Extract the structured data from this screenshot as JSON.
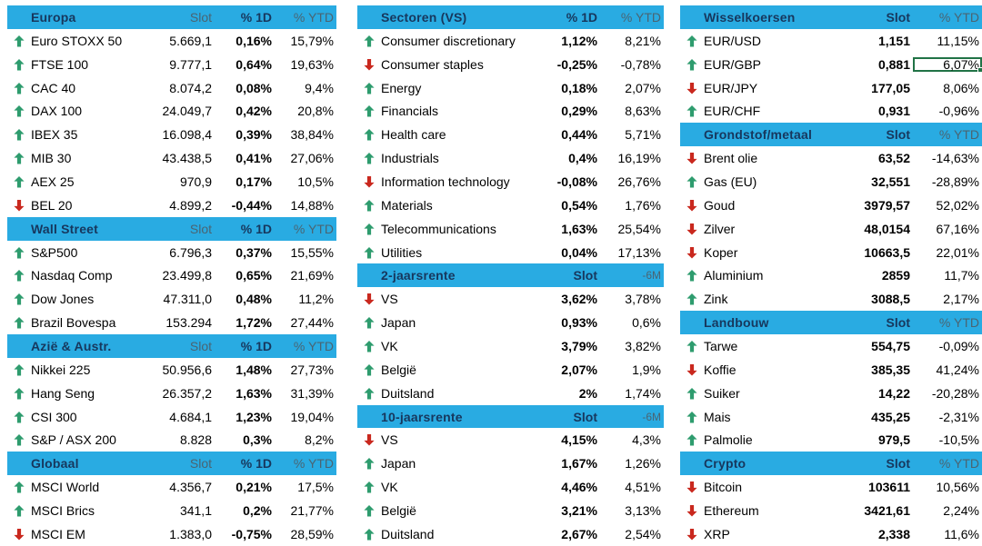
{
  "colors": {
    "band": "#29ABE2",
    "navy": "#17375D",
    "muted": "#4A6472",
    "up_arrow": "#2E9C6E",
    "down_arrow": "#C9281E",
    "selection": "#217346"
  },
  "selection": {
    "table": "right",
    "section": "Wisselkoersen",
    "row": "EUR/GBP",
    "value": "6,07%"
  },
  "tables": [
    {
      "id": "left",
      "grid": "cols3",
      "sections": [
        {
          "title": "Europa",
          "cols": [
            {
              "label": "Slot",
              "bold": false
            },
            {
              "label": "% 1D",
              "bold": true
            },
            {
              "label": "% YTD",
              "bold": false
            }
          ],
          "rows": [
            {
              "dir": "up",
              "name": "Euro STOXX 50",
              "values": [
                "5.669,1",
                "0,16%",
                "15,79%"
              ]
            },
            {
              "dir": "up",
              "name": "FTSE 100",
              "values": [
                "9.777,1",
                "0,64%",
                "19,63%"
              ]
            },
            {
              "dir": "up",
              "name": "CAC 40",
              "values": [
                "8.074,2",
                "0,08%",
                "9,4%"
              ]
            },
            {
              "dir": "up",
              "name": "DAX 100",
              "values": [
                "24.049,7",
                "0,42%",
                "20,8%"
              ]
            },
            {
              "dir": "up",
              "name": "IBEX 35",
              "values": [
                "16.098,4",
                "0,39%",
                "38,84%"
              ]
            },
            {
              "dir": "up",
              "name": "MIB 30",
              "values": [
                "43.438,5",
                "0,41%",
                "27,06%"
              ]
            },
            {
              "dir": "up",
              "name": "AEX 25",
              "values": [
                "970,9",
                "0,17%",
                "10,5%"
              ]
            },
            {
              "dir": "down",
              "name": "BEL 20",
              "values": [
                "4.899,2",
                "-0,44%",
                "14,88%"
              ]
            }
          ]
        },
        {
          "title": "Wall Street",
          "cols": [
            {
              "label": "Slot",
              "bold": false
            },
            {
              "label": "% 1D",
              "bold": true
            },
            {
              "label": "% YTD",
              "bold": false
            }
          ],
          "rows": [
            {
              "dir": "up",
              "name": "S&P500",
              "values": [
                "6.796,3",
                "0,37%",
                "15,55%"
              ]
            },
            {
              "dir": "up",
              "name": "Nasdaq Comp",
              "values": [
                "23.499,8",
                "0,65%",
                "21,69%"
              ]
            },
            {
              "dir": "up",
              "name": "Dow Jones",
              "values": [
                "47.311,0",
                "0,48%",
                "11,2%"
              ]
            },
            {
              "dir": "up",
              "name": "Brazil Bovespa",
              "values": [
                "153.294",
                "1,72%",
                "27,44%"
              ]
            }
          ]
        },
        {
          "title": "Azië & Austr.",
          "cols": [
            {
              "label": "Slot",
              "bold": false
            },
            {
              "label": "% 1D",
              "bold": true
            },
            {
              "label": "% YTD",
              "bold": false
            }
          ],
          "rows": [
            {
              "dir": "up",
              "name": "Nikkei 225",
              "values": [
                "50.956,6",
                "1,48%",
                "27,73%"
              ]
            },
            {
              "dir": "up",
              "name": "Hang Seng",
              "values": [
                "26.357,2",
                "1,63%",
                "31,39%"
              ]
            },
            {
              "dir": "up",
              "name": "CSI 300",
              "values": [
                "4.684,1",
                "1,23%",
                "19,04%"
              ]
            },
            {
              "dir": "up",
              "name": "S&P / ASX 200",
              "values": [
                "8.828",
                "0,3%",
                "8,2%"
              ]
            }
          ]
        },
        {
          "title": "Globaal",
          "cols": [
            {
              "label": "Slot",
              "bold": false
            },
            {
              "label": "% 1D",
              "bold": true
            },
            {
              "label": "% YTD",
              "bold": false
            }
          ],
          "rows": [
            {
              "dir": "up",
              "name": "MSCI World",
              "values": [
                "4.356,7",
                "0,21%",
                "17,5%"
              ]
            },
            {
              "dir": "up",
              "name": "MSCI Brics",
              "values": [
                "341,1",
                "0,2%",
                "21,77%"
              ]
            },
            {
              "dir": "down",
              "name": "MSCI EM",
              "values": [
                "1.383,0",
                "-0,75%",
                "28,59%"
              ]
            }
          ]
        }
      ]
    },
    {
      "id": "middle",
      "grid": "cols2m",
      "sections": [
        {
          "title": "Sectoren (VS)",
          "cols": [
            {
              "label": "% 1D",
              "bold": true
            },
            {
              "label": "% YTD",
              "bold": false
            }
          ],
          "rows": [
            {
              "dir": "up",
              "name": "Consumer discretionary",
              "values": [
                "1,12%",
                "8,21%"
              ]
            },
            {
              "dir": "down",
              "name": "Consumer staples",
              "values": [
                "-0,25%",
                "-0,78%"
              ]
            },
            {
              "dir": "up",
              "name": "Energy",
              "values": [
                "0,18%",
                "2,07%"
              ]
            },
            {
              "dir": "up",
              "name": "Financials",
              "values": [
                "0,29%",
                "8,63%"
              ]
            },
            {
              "dir": "up",
              "name": "Health care",
              "values": [
                "0,44%",
                "5,71%"
              ]
            },
            {
              "dir": "up",
              "name": "Industrials",
              "values": [
                "0,4%",
                "16,19%"
              ]
            },
            {
              "dir": "down",
              "name": "Information technology",
              "values": [
                "-0,08%",
                "26,76%"
              ]
            },
            {
              "dir": "up",
              "name": "Materials",
              "values": [
                "0,54%",
                "1,76%"
              ]
            },
            {
              "dir": "up",
              "name": "Telecommunications",
              "values": [
                "1,63%",
                "25,54%"
              ]
            },
            {
              "dir": "up",
              "name": "Utilities",
              "values": [
                "0,04%",
                "17,13%"
              ]
            }
          ]
        },
        {
          "title": "2-jaarsrente",
          "cols": [
            {
              "label": "Slot",
              "bold": true
            },
            {
              "label": "-6M",
              "bold": false,
              "small": true
            }
          ],
          "rows": [
            {
              "dir": "down",
              "name": "VS",
              "values": [
                "3,62%",
                "3,78%"
              ]
            },
            {
              "dir": "up",
              "name": "Japan",
              "values": [
                "0,93%",
                "0,6%"
              ]
            },
            {
              "dir": "up",
              "name": "VK",
              "values": [
                "3,79%",
                "3,82%"
              ]
            },
            {
              "dir": "up",
              "name": "België",
              "values": [
                "2,07%",
                "1,9%"
              ]
            },
            {
              "dir": "up",
              "name": "Duitsland",
              "values": [
                "2%",
                "1,74%"
              ]
            }
          ]
        },
        {
          "title": "10-jaarsrente",
          "cols": [
            {
              "label": "Slot",
              "bold": true
            },
            {
              "label": "-6M",
              "bold": false,
              "small": true
            }
          ],
          "rows": [
            {
              "dir": "down",
              "name": "VS",
              "values": [
                "4,15%",
                "4,3%"
              ]
            },
            {
              "dir": "up",
              "name": "Japan",
              "values": [
                "1,67%",
                "1,26%"
              ]
            },
            {
              "dir": "up",
              "name": "VK",
              "values": [
                "4,46%",
                "4,51%"
              ]
            },
            {
              "dir": "up",
              "name": "België",
              "values": [
                "3,21%",
                "3,13%"
              ]
            },
            {
              "dir": "up",
              "name": "Duitsland",
              "values": [
                "2,67%",
                "2,54%"
              ]
            }
          ]
        }
      ]
    },
    {
      "id": "right",
      "grid": "cols2r",
      "sections": [
        {
          "title": "Wisselkoersen",
          "cols": [
            {
              "label": "Slot",
              "bold": true
            },
            {
              "label": "% YTD",
              "bold": false
            }
          ],
          "rows": [
            {
              "dir": "up",
              "name": "EUR/USD",
              "values": [
                "1,151",
                "11,15%"
              ]
            },
            {
              "dir": "up",
              "name": "EUR/GBP",
              "values": [
                "0,881",
                "6,07%"
              ],
              "selected_col": 1
            },
            {
              "dir": "down",
              "name": "EUR/JPY",
              "values": [
                "177,05",
                "8,06%"
              ]
            },
            {
              "dir": "up",
              "name": "EUR/CHF",
              "values": [
                "0,931",
                "-0,96%"
              ]
            }
          ]
        },
        {
          "title": "Grondstof/metaal",
          "cols": [
            {
              "label": "Slot",
              "bold": true
            },
            {
              "label": "% YTD",
              "bold": false
            }
          ],
          "rows": [
            {
              "dir": "down",
              "name": "Brent olie",
              "values": [
                "63,52",
                "-14,63%"
              ]
            },
            {
              "dir": "up",
              "name": "Gas (EU)",
              "values": [
                "32,551",
                "-28,89%"
              ]
            },
            {
              "dir": "down",
              "name": "Goud",
              "values": [
                "3979,57",
                "52,02%"
              ]
            },
            {
              "dir": "down",
              "name": "Zilver",
              "values": [
                "48,0154",
                "67,16%"
              ]
            },
            {
              "dir": "down",
              "name": "Koper",
              "values": [
                "10663,5",
                "22,01%"
              ]
            },
            {
              "dir": "up",
              "name": "Aluminium",
              "values": [
                "2859",
                "11,7%"
              ]
            },
            {
              "dir": "up",
              "name": "Zink",
              "values": [
                "3088,5",
                "2,17%"
              ]
            }
          ]
        },
        {
          "title": "Landbouw",
          "cols": [
            {
              "label": "Slot",
              "bold": true
            },
            {
              "label": "% YTD",
              "bold": false
            }
          ],
          "rows": [
            {
              "dir": "up",
              "name": "Tarwe",
              "values": [
                "554,75",
                "-0,09%"
              ]
            },
            {
              "dir": "down",
              "name": "Koffie",
              "values": [
                "385,35",
                "41,24%"
              ]
            },
            {
              "dir": "up",
              "name": "Suiker",
              "values": [
                "14,22",
                "-20,28%"
              ]
            },
            {
              "dir": "up",
              "name": "Mais",
              "values": [
                "435,25",
                "-2,31%"
              ]
            },
            {
              "dir": "up",
              "name": "Palmolie",
              "values": [
                "979,5",
                "-10,5%"
              ]
            }
          ]
        },
        {
          "title": "Crypto",
          "cols": [
            {
              "label": "Slot",
              "bold": true
            },
            {
              "label": "% YTD",
              "bold": false
            }
          ],
          "rows": [
            {
              "dir": "down",
              "name": "Bitcoin",
              "values": [
                "103611",
                "10,56%"
              ]
            },
            {
              "dir": "down",
              "name": "Ethereum",
              "values": [
                "3421,61",
                "2,24%"
              ]
            },
            {
              "dir": "down",
              "name": "XRP",
              "values": [
                "2,338",
                "11,6%"
              ]
            }
          ]
        }
      ]
    }
  ]
}
